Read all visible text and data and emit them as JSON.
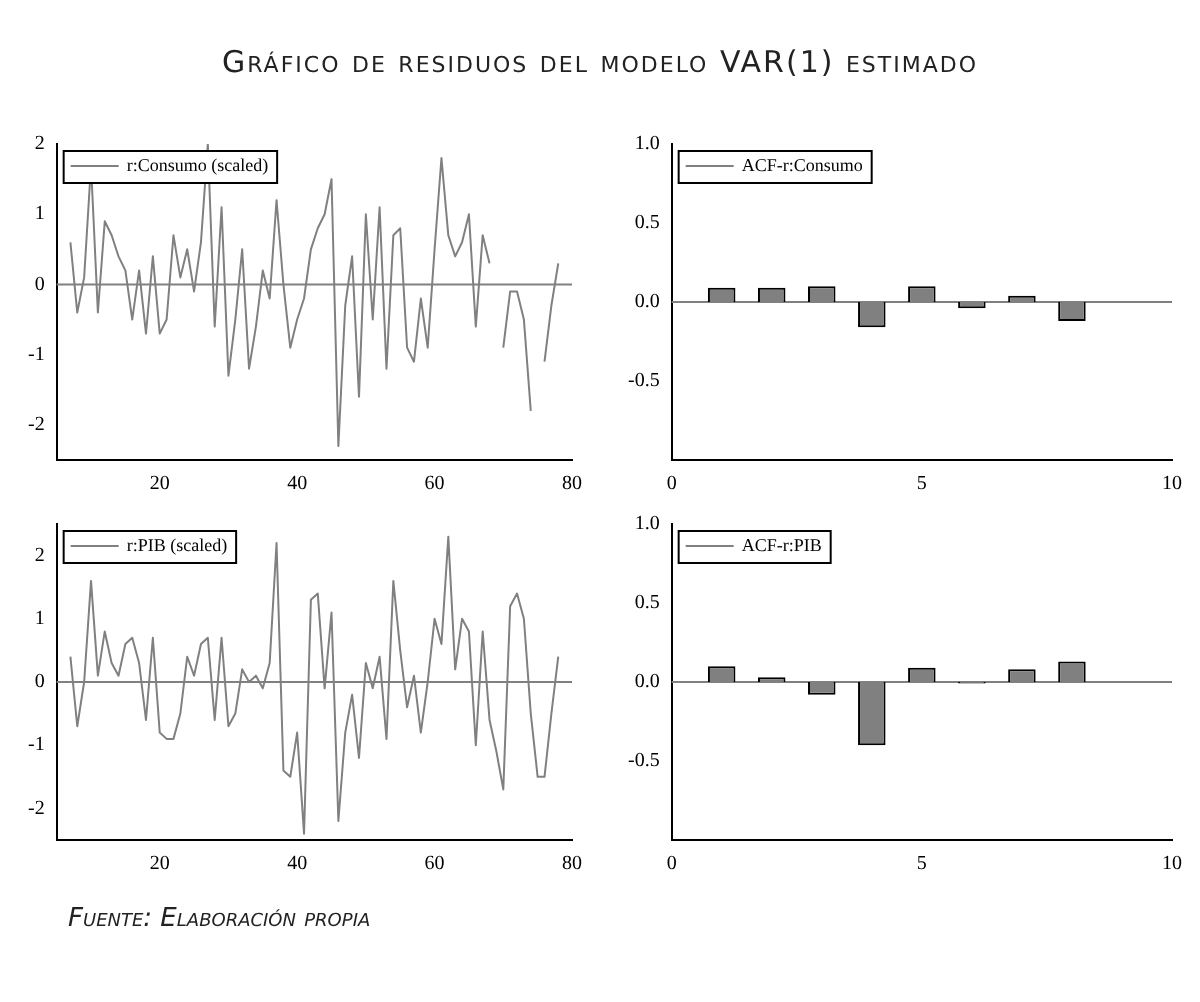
{
  "chart_data": [
    {
      "type": "line",
      "title": "Gráfico de residuos del modelo VAR(1) estimado",
      "x": [
        7,
        8,
        9,
        10,
        11,
        12,
        13,
        14,
        15,
        16,
        17,
        18,
        19,
        20,
        21,
        22,
        23,
        24,
        25,
        26,
        27,
        28,
        29,
        30,
        31,
        32,
        33,
        34,
        35,
        36,
        37,
        38,
        39,
        40,
        41,
        42,
        43,
        44,
        45,
        46,
        47,
        48,
        49,
        50,
        51,
        52,
        53,
        54,
        55,
        56,
        57,
        58,
        59,
        60,
        61,
        62,
        63,
        64,
        65,
        66,
        67,
        68,
        69,
        70,
        71,
        72,
        73,
        74,
        75,
        76,
        77,
        78
      ],
      "series": [
        {
          "name": "r:Consumo (scaled)",
          "color": "#808080",
          "values": [
            0.6,
            -0.4,
            0.1,
            1.7,
            -0.4,
            0.9,
            0.7,
            0.4,
            0.2,
            -0.5,
            0.2,
            -0.7,
            0.4,
            -0.7,
            -0.5,
            0.7,
            0.1,
            0.5,
            -0.1,
            0.6,
            2.0,
            -0.6,
            1.1,
            -1.3,
            -0.5,
            0.5,
            -1.2,
            -0.6,
            0.2,
            -0.2,
            1.2,
            0.0,
            -0.9,
            -0.5,
            -0.2,
            0.5,
            0.8,
            1.0,
            1.5,
            -2.3,
            -0.3,
            0.4,
            -1.6,
            1.0,
            -0.5,
            1.1,
            -1.2,
            0.7,
            0.8,
            -0.9,
            -1.1,
            -0.2,
            -0.9,
            0.5,
            1.8,
            0.7,
            0.4,
            0.6,
            1.0,
            -0.6,
            0.7,
            0.3,
            null,
            -0.9,
            -0.1,
            -0.1,
            -0.5,
            -1.8,
            null,
            -1.1,
            -0.3,
            0.3
          ]
        }
      ],
      "xlim": [
        5,
        80
      ],
      "xticks": [
        20,
        40,
        60,
        80
      ],
      "ylim": [
        -2.5,
        2
      ],
      "yticks": [
        -2,
        -1,
        0,
        1,
        2
      ],
      "ref_lines": [
        {
          "axis": "y",
          "value": 0,
          "color": "#808080"
        }
      ],
      "legend": "top left",
      "grid": false,
      "marker": "none",
      "line_style": "solid"
    },
    {
      "type": "bar",
      "x": [
        1,
        2,
        3,
        4,
        5,
        6,
        7,
        8
      ],
      "series": [
        {
          "name": "ACF-r:Consumo",
          "color": "#808080",
          "values": [
            0.09,
            0.09,
            0.1,
            -0.16,
            0.1,
            -0.04,
            0.04,
            -0.12
          ]
        }
      ],
      "xlim": [
        0,
        10
      ],
      "xticks": [
        0,
        5,
        10
      ],
      "ylim": [
        -1,
        1
      ],
      "yticks": [
        {
          "value": -0.5,
          "label": "-0.5"
        },
        {
          "value": 0,
          "label": "0.0"
        },
        {
          "value": 0.5,
          "label": "0.5"
        },
        {
          "value": 1,
          "label": "1.0"
        }
      ],
      "ref_lines": [
        {
          "axis": "y",
          "value": 0,
          "color": "#808080"
        }
      ],
      "legend": "top left",
      "grid": false
    },
    {
      "type": "line",
      "x": [
        7,
        8,
        9,
        10,
        11,
        12,
        13,
        14,
        15,
        16,
        17,
        18,
        19,
        20,
        21,
        22,
        23,
        24,
        25,
        26,
        27,
        28,
        29,
        30,
        31,
        32,
        33,
        34,
        35,
        36,
        37,
        38,
        39,
        40,
        41,
        42,
        43,
        44,
        45,
        46,
        47,
        48,
        49,
        50,
        51,
        52,
        53,
        54,
        55,
        56,
        57,
        58,
        59,
        60,
        61,
        62,
        63,
        64,
        65,
        66,
        67,
        68,
        69,
        70,
        71,
        72,
        73,
        74,
        75,
        76,
        77,
        78
      ],
      "series": [
        {
          "name": "r:PIB (scaled)",
          "color": "#808080",
          "values": [
            0.4,
            -0.7,
            0.0,
            1.6,
            0.1,
            0.8,
            0.3,
            0.1,
            0.6,
            0.7,
            0.3,
            -0.6,
            0.7,
            -0.8,
            -0.9,
            -0.9,
            -0.5,
            0.4,
            0.1,
            0.6,
            0.7,
            -0.6,
            0.7,
            -0.7,
            -0.5,
            0.2,
            0.0,
            0.1,
            -0.1,
            0.3,
            2.2,
            -1.4,
            -1.5,
            -0.8,
            -2.4,
            1.3,
            1.4,
            -0.1,
            1.1,
            -2.2,
            -0.8,
            -0.2,
            -1.2,
            0.3,
            -0.1,
            0.4,
            -0.9,
            1.6,
            0.5,
            -0.4,
            0.1,
            -0.8,
            0.0,
            1.0,
            0.6,
            2.3,
            0.2,
            1.0,
            0.8,
            -1.0,
            0.8,
            -0.6,
            -1.1,
            -1.7,
            1.2,
            1.4,
            1.0,
            -0.5,
            -1.5,
            -1.5,
            -0.5,
            0.4
          ]
        }
      ],
      "xlim": [
        5,
        80
      ],
      "xticks": [
        20,
        40,
        60,
        80
      ],
      "ylim": [
        -2.5,
        2.5
      ],
      "yticks": [
        -2,
        -1,
        0,
        1,
        2
      ],
      "ref_lines": [
        {
          "axis": "y",
          "value": 0,
          "color": "#808080"
        }
      ],
      "legend": "top left",
      "grid": false,
      "marker": "none",
      "line_style": "solid"
    },
    {
      "type": "bar",
      "x": [
        1,
        2,
        3,
        4,
        5,
        6,
        7,
        8
      ],
      "series": [
        {
          "name": "ACF-r:PIB",
          "color": "#808080",
          "values": [
            0.1,
            0.03,
            -0.08,
            -0.4,
            0.09,
            -0.01,
            0.08,
            0.13
          ]
        }
      ],
      "xlim": [
        0,
        10
      ],
      "xticks": [
        0,
        5,
        10
      ],
      "ylim": [
        -1,
        1
      ],
      "yticks": [
        {
          "value": -0.5,
          "label": "-0.5"
        },
        {
          "value": 0,
          "label": "0.0"
        },
        {
          "value": 0.5,
          "label": "0.5"
        },
        {
          "value": 1,
          "label": "1.0"
        }
      ],
      "ref_lines": [
        {
          "axis": "y",
          "value": 0,
          "color": "#808080"
        }
      ],
      "legend": "top left",
      "grid": false,
      "annotations": [
        "Fuente: Elaboración propia"
      ]
    }
  ]
}
